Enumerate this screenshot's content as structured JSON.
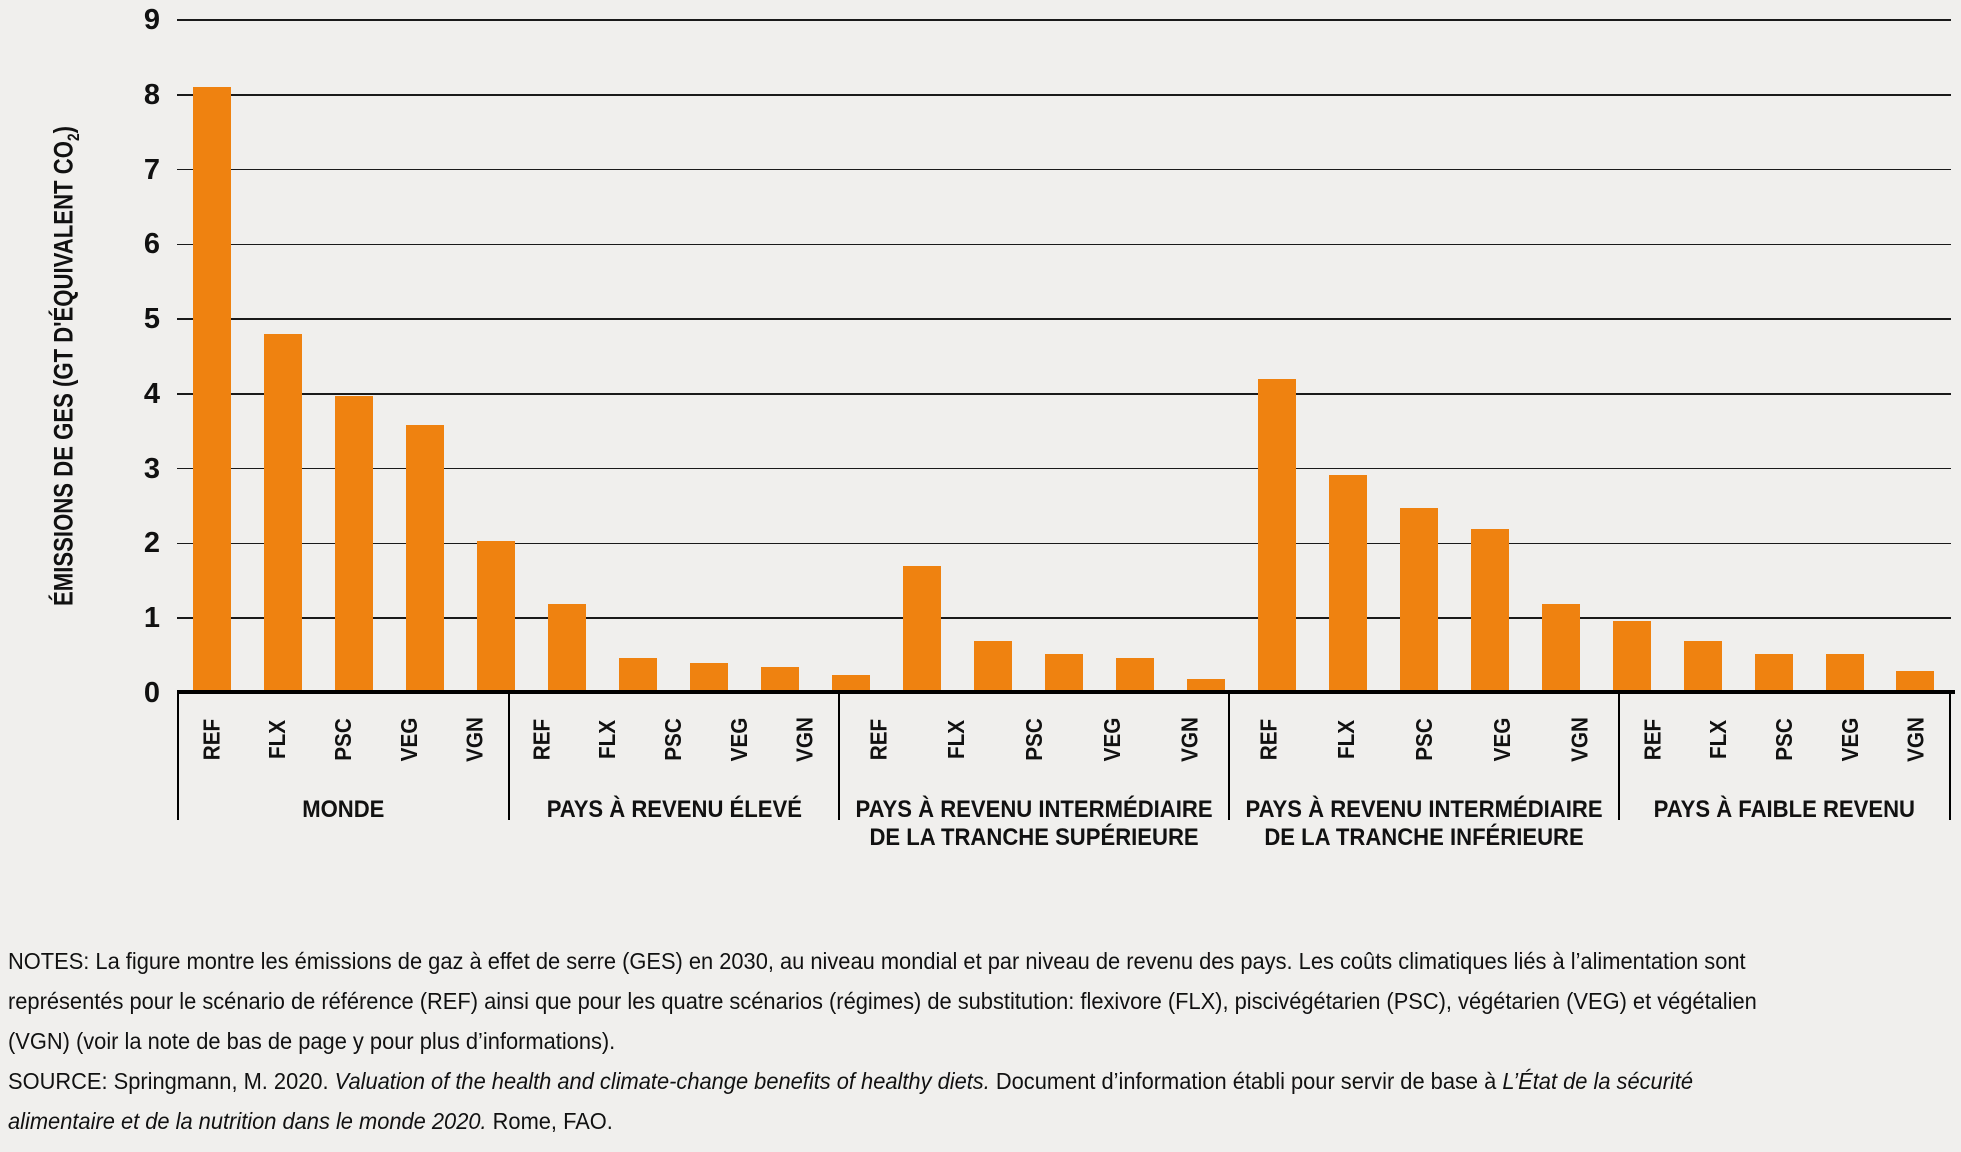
{
  "figure": {
    "background": "#F0EFED",
    "grid_color": "#1A1A1A",
    "axis_color": "#000000",
    "text_color": "#111111"
  },
  "chart_data": {
    "type": "bar",
    "title": "",
    "ylabel": "ÉMISSIONS DE GES (GT D'ÉQUIVALENT CO2)",
    "ylabel_main": "ÉMISSIONS DE GES (GT D'ÉQUIVALENT CO",
    "ylabel_sub": "2",
    "ylabel_close": ")",
    "ylim": [
      0,
      9
    ],
    "yticks": [
      0,
      1,
      2,
      3,
      4,
      5,
      6,
      7,
      8,
      9
    ],
    "grid": true,
    "legend": "none",
    "bar_color": "#EF8210",
    "categories": [
      "REF",
      "FLX",
      "PSC",
      "VEG",
      "VGN"
    ],
    "groups": [
      {
        "label_lines": [
          "MONDE"
        ],
        "values": [
          8.1,
          4.8,
          3.97,
          3.58,
          2.03
        ]
      },
      {
        "label_lines": [
          "PAYS À REVENU ÉLEVÉ"
        ],
        "values": [
          1.19,
          0.47,
          0.4,
          0.35,
          0.24
        ]
      },
      {
        "label_lines": [
          "PAYS À REVENU INTERMÉDIAIRE",
          "DE LA TRANCHE SUPÉRIEURE"
        ],
        "values": [
          1.7,
          0.7,
          0.52,
          0.47,
          0.19
        ]
      },
      {
        "label_lines": [
          "PAYS À REVENU INTERMÉDIAIRE",
          "DE LA TRANCHE INFÉRIEURE"
        ],
        "values": [
          4.2,
          2.91,
          2.47,
          2.19,
          1.19
        ]
      },
      {
        "label_lines": [
          "PAYS À FAIBLE REVENU"
        ],
        "values": [
          0.97,
          0.7,
          0.52,
          0.52,
          0.29
        ]
      }
    ]
  },
  "notes": {
    "lines": [
      [
        {
          "t": "NOTES: La figure montre les émissions de gaz à effet de serre (GES) en 2030, au niveau mondial et par niveau de revenu des pays. Les coûts climatiques liés à l’alimentation sont"
        }
      ],
      [
        {
          "t": "représentés pour le scénario de référence (REF) ainsi que pour les quatre scénarios (régimes) de substitution: flexivore (FLX), piscivégétarien (PSC), végétarien (VEG) et végétalien"
        }
      ],
      [
        {
          "t": "(VGN) (voir la note de bas de page y pour plus d’informations)."
        }
      ],
      [
        {
          "t": "SOURCE: Springmann, M. 2020. "
        },
        {
          "t": "Valuation of the health and climate-change benefits of healthy diets.",
          "i": true
        },
        {
          "t": " Document d’information établi pour servir de base à ",
          "i": false
        },
        {
          "t": "L’État de la sécurité",
          "i": true
        }
      ],
      [
        {
          "t": "alimentaire et de la nutrition dans le monde 2020.",
          "i": true
        },
        {
          "t": " Rome, FAO.",
          "i": false
        }
      ]
    ]
  }
}
